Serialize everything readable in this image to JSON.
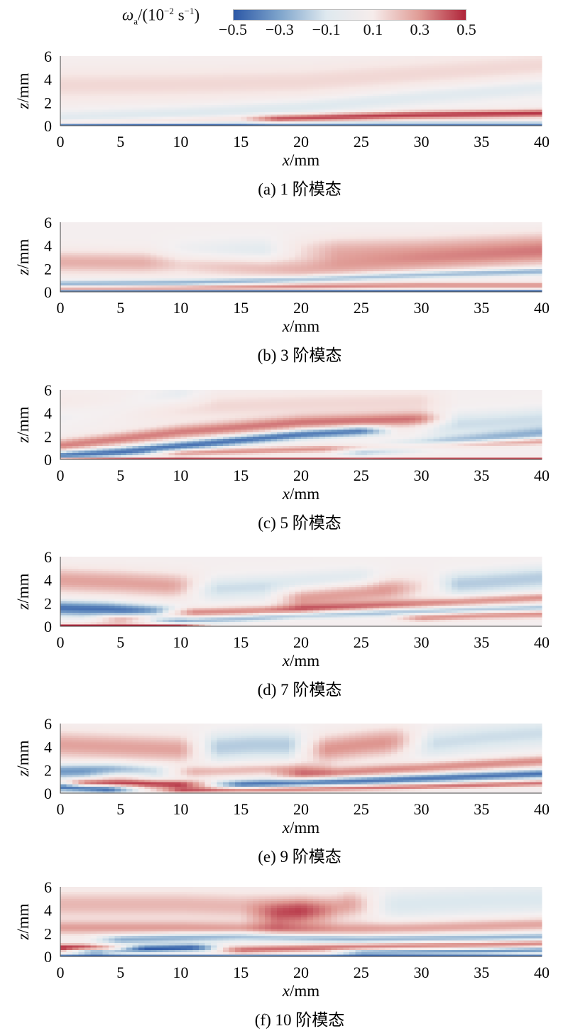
{
  "colorbar": {
    "label_symbol": "ω",
    "label_sub": "a",
    "label_rest_a": "/(10",
    "label_exp1": "−2",
    "label_rest_b": " s",
    "label_exp2": "−1",
    "label_rest_c": ")",
    "ticks": [
      "−0.5",
      "−0.3",
      "−0.1",
      "0.1",
      "0.3",
      "0.5"
    ],
    "tick_values": [
      -0.5,
      -0.3,
      -0.1,
      0.1,
      0.3,
      0.5
    ],
    "colors": [
      "#2c58a6",
      "#7fa5cc",
      "#dfe9ef",
      "#f6eceb",
      "#e09c96",
      "#b0253a"
    ]
  },
  "chart_data": [
    {
      "type": "heatmap",
      "caption": "(a) 1 阶模态",
      "xlabel_italic": "x",
      "xlabel_unit": "/mm",
      "ylabel_italic": "z",
      "ylabel_unit": "/mm",
      "xlim": [
        0,
        40
      ],
      "ylim": [
        0,
        6
      ],
      "xticks": [
        0,
        5,
        10,
        15,
        20,
        25,
        30,
        35,
        40
      ],
      "yticks": [
        0,
        2,
        4,
        6
      ],
      "bands": [
        {
          "x": [
            0,
            10,
            20,
            30,
            40
          ],
          "z": [
            0.05,
            0.1,
            0.15,
            0.15,
            0.15
          ],
          "w": 0.15,
          "v": -0.45
        },
        {
          "x": [
            0,
            10,
            20,
            30,
            40
          ],
          "z": [
            0.25,
            0.5,
            0.8,
            1.0,
            1.1
          ],
          "w": 0.3,
          "v": 0.15
        },
        {
          "x": [
            0,
            10,
            20,
            30,
            40
          ],
          "z": [
            0.5,
            1.0,
            1.6,
            2.6,
            3.4
          ],
          "w": 0.8,
          "v": -0.12
        },
        {
          "x": [
            0,
            10,
            20,
            30,
            40
          ],
          "z": [
            3.5,
            3.6,
            3.8,
            4.5,
            5.2
          ],
          "w": 1.5,
          "v": 0.12
        },
        {
          "x": [
            18,
            28,
            40
          ],
          "z": [
            0.6,
            0.9,
            1.1
          ],
          "w": 0.35,
          "v": 0.3
        }
      ]
    },
    {
      "type": "heatmap",
      "caption": "(b) 3 阶模态",
      "xlabel_italic": "x",
      "xlabel_unit": "/mm",
      "ylabel_italic": "z",
      "ylabel_unit": "/mm",
      "xlim": [
        0,
        40
      ],
      "ylim": [
        0,
        6
      ],
      "xticks": [
        0,
        5,
        10,
        15,
        20,
        25,
        30,
        35,
        40
      ],
      "yticks": [
        0,
        2,
        4,
        6
      ],
      "bands": [
        {
          "x": [
            0,
            10,
            20,
            30,
            40
          ],
          "z": [
            0.1,
            0.1,
            0.1,
            0.1,
            0.1
          ],
          "w": 0.12,
          "v": -0.45
        },
        {
          "x": [
            0,
            10,
            20,
            30,
            40
          ],
          "z": [
            0.7,
            0.8,
            1.1,
            1.5,
            1.8
          ],
          "w": 0.3,
          "v": -0.3
        },
        {
          "x": [
            0,
            10,
            20,
            30,
            40
          ],
          "z": [
            2.6,
            2.5,
            2.0,
            2.6,
            3.2
          ],
          "w": 1.0,
          "v": 0.22
        },
        {
          "x": [
            10,
            15,
            20
          ],
          "z": [
            3.0,
            3.3,
            3.4
          ],
          "w": 1.2,
          "v": -0.12
        },
        {
          "x": [
            20,
            30,
            40
          ],
          "z": [
            3.6,
            3.8,
            4.2
          ],
          "w": 1.1,
          "v": 0.2
        },
        {
          "x": [
            0,
            10,
            20,
            30,
            40
          ],
          "z": [
            0.35,
            0.4,
            0.5,
            0.6,
            0.6
          ],
          "w": 0.25,
          "v": 0.3
        }
      ]
    },
    {
      "type": "heatmap",
      "caption": "(c) 5 阶模态",
      "xlabel_italic": "x",
      "xlabel_unit": "/mm",
      "ylabel_italic": "z",
      "ylabel_unit": "/mm",
      "xlim": [
        0,
        40
      ],
      "ylim": [
        0,
        6
      ],
      "xticks": [
        0,
        5,
        10,
        15,
        20,
        25,
        30,
        35,
        40
      ],
      "yticks": [
        0,
        2,
        4,
        6
      ],
      "bands": [
        {
          "x": [
            0,
            10,
            20,
            30,
            40
          ],
          "z": [
            0.1,
            0.1,
            0.1,
            0.1,
            0.1
          ],
          "w": 0.12,
          "v": 0.4
        },
        {
          "x": [
            0,
            5,
            10,
            20,
            25
          ],
          "z": [
            0.4,
            0.7,
            1.2,
            2.2,
            2.5
          ],
          "w": 0.4,
          "v": -0.45
        },
        {
          "x": [
            0,
            5,
            10,
            20,
            30
          ],
          "z": [
            1.2,
            1.8,
            2.4,
            3.2,
            3.5
          ],
          "w": 0.6,
          "v": 0.32
        },
        {
          "x": [
            10,
            20,
            30,
            40
          ],
          "z": [
            0.6,
            0.9,
            1.2,
            1.6
          ],
          "w": 0.3,
          "v": 0.28
        },
        {
          "x": [
            0,
            10,
            20,
            30
          ],
          "z": [
            4.5,
            4.5,
            4.8,
            5.0
          ],
          "w": 1.2,
          "v": 0.12
        },
        {
          "x": [
            25,
            32,
            40
          ],
          "z": [
            0.8,
            1.5,
            2.3
          ],
          "w": 0.5,
          "v": -0.25
        },
        {
          "x": [
            32,
            36,
            40
          ],
          "z": [
            3.0,
            3.2,
            3.5
          ],
          "w": 1.0,
          "v": -0.15
        },
        {
          "x": [
            0,
            5,
            10
          ],
          "z": [
            4.0,
            4.5,
            5.5
          ],
          "w": 1.0,
          "v": -0.12
        }
      ]
    },
    {
      "type": "heatmap",
      "caption": "(d) 7 阶模态",
      "xlabel_italic": "x",
      "xlabel_unit": "/mm",
      "ylabel_italic": "z",
      "ylabel_unit": "/mm",
      "xlim": [
        0,
        40
      ],
      "ylim": [
        0,
        6
      ],
      "xticks": [
        0,
        5,
        10,
        15,
        20,
        25,
        30,
        35,
        40
      ],
      "yticks": [
        0,
        2,
        4,
        6
      ],
      "bands": [
        {
          "x": [
            0,
            5,
            10
          ],
          "z": [
            0.1,
            0.1,
            0.1
          ],
          "w": 0.15,
          "v": 0.5
        },
        {
          "x": [
            0,
            4,
            8
          ],
          "z": [
            1.6,
            1.5,
            1.2
          ],
          "w": 0.6,
          "v": -0.45
        },
        {
          "x": [
            0,
            5,
            10
          ],
          "z": [
            4.0,
            3.8,
            3.5
          ],
          "w": 1.1,
          "v": 0.25
        },
        {
          "x": [
            5,
            10,
            20,
            30,
            40
          ],
          "z": [
            0.7,
            1.2,
            1.5,
            2.0,
            2.5
          ],
          "w": 0.4,
          "v": 0.3
        },
        {
          "x": [
            10,
            15,
            20,
            30,
            40
          ],
          "z": [
            0.5,
            0.7,
            1.0,
            1.3,
            1.6
          ],
          "w": 0.3,
          "v": -0.25
        },
        {
          "x": [
            12,
            18,
            25
          ],
          "z": [
            3.2,
            3.5,
            4.0
          ],
          "w": 1.0,
          "v": -0.15
        },
        {
          "x": [
            20,
            25,
            30
          ],
          "z": [
            2.5,
            3.0,
            3.5
          ],
          "w": 1.0,
          "v": 0.3
        },
        {
          "x": [
            30,
            35,
            40
          ],
          "z": [
            3.5,
            3.8,
            4.2
          ],
          "w": 1.0,
          "v": -0.2
        },
        {
          "x": [
            30,
            35,
            40
          ],
          "z": [
            0.8,
            1.0,
            1.1
          ],
          "w": 0.35,
          "v": 0.3
        }
      ]
    },
    {
      "type": "heatmap",
      "caption": "(e) 9 阶模态",
      "xlabel_italic": "x",
      "xlabel_unit": "/mm",
      "ylabel_italic": "z",
      "ylabel_unit": "/mm",
      "xlim": [
        0,
        40
      ],
      "ylim": [
        0,
        6
      ],
      "xticks": [
        0,
        5,
        10,
        15,
        20,
        25,
        30,
        35,
        40
      ],
      "yticks": [
        0,
        2,
        4,
        6
      ],
      "bands": [
        {
          "x": [
            0,
            2,
            4
          ],
          "z": [
            0.6,
            0.5,
            0.4
          ],
          "w": 0.35,
          "v": -0.5
        },
        {
          "x": [
            2,
            6,
            10
          ],
          "z": [
            0.9,
            0.9,
            0.8
          ],
          "w": 0.35,
          "v": 0.45
        },
        {
          "x": [
            0,
            4,
            8
          ],
          "z": [
            1.9,
            2.0,
            1.8
          ],
          "w": 0.6,
          "v": -0.35
        },
        {
          "x": [
            0,
            5,
            10
          ],
          "z": [
            4.2,
            4.0,
            3.8
          ],
          "w": 1.2,
          "v": 0.25
        },
        {
          "x": [
            5,
            12,
            20
          ],
          "z": [
            1.6,
            1.9,
            2.2
          ],
          "w": 0.5,
          "v": 0.2
        },
        {
          "x": [
            10,
            20,
            30,
            40
          ],
          "z": [
            0.3,
            0.4,
            0.6,
            0.9
          ],
          "w": 0.25,
          "v": 0.35
        },
        {
          "x": [
            15,
            25,
            35,
            40
          ],
          "z": [
            0.8,
            1.1,
            1.5,
            1.7
          ],
          "w": 0.35,
          "v": -0.45
        },
        {
          "x": [
            20,
            30,
            40
          ],
          "z": [
            1.6,
            2.2,
            2.8
          ],
          "w": 0.5,
          "v": 0.3
        },
        {
          "x": [
            13,
            16,
            19
          ],
          "z": [
            4.0,
            4.2,
            4.2
          ],
          "w": 1.2,
          "v": -0.2
        },
        {
          "x": [
            22,
            25,
            28
          ],
          "z": [
            3.8,
            4.2,
            4.5
          ],
          "w": 1.2,
          "v": 0.28
        },
        {
          "x": [
            30,
            35,
            40
          ],
          "z": [
            4.2,
            4.8,
            5.2
          ],
          "w": 1.2,
          "v": -0.15
        }
      ]
    },
    {
      "type": "heatmap",
      "caption": "(f) 10 阶模态",
      "xlabel_italic": "x",
      "xlabel_unit": "/mm",
      "ylabel_italic": "z",
      "ylabel_unit": "/mm",
      "xlim": [
        0,
        40
      ],
      "ylim": [
        0,
        6
      ],
      "xticks": [
        0,
        5,
        10,
        15,
        20,
        25,
        30,
        35,
        40
      ],
      "yticks": [
        0,
        2,
        4,
        6
      ],
      "bands": [
        {
          "x": [
            0,
            2,
            4
          ],
          "z": [
            0.8,
            0.8,
            0.7
          ],
          "w": 0.3,
          "v": 0.5
        },
        {
          "x": [
            3,
            7,
            11
          ],
          "z": [
            0.5,
            0.7,
            0.8
          ],
          "w": 0.3,
          "v": -0.5
        },
        {
          "x": [
            0,
            10,
            20,
            30,
            40
          ],
          "z": [
            0.1,
            0.1,
            0.1,
            0.1,
            0.1
          ],
          "w": 0.1,
          "v": -0.4
        },
        {
          "x": [
            0,
            10,
            20,
            30,
            40
          ],
          "z": [
            2.5,
            2.5,
            2.3,
            2.5,
            2.8
          ],
          "w": 0.6,
          "v": 0.25
        },
        {
          "x": [
            5,
            15,
            25,
            35,
            40
          ],
          "z": [
            1.5,
            1.8,
            1.5,
            1.6,
            1.7
          ],
          "w": 0.4,
          "v": -0.3
        },
        {
          "x": [
            15,
            25,
            35,
            40
          ],
          "z": [
            0.6,
            0.9,
            1.1,
            1.2
          ],
          "w": 0.35,
          "v": 0.35
        },
        {
          "x": [
            25,
            35,
            40
          ],
          "z": [
            0.4,
            0.5,
            0.6
          ],
          "w": 0.25,
          "v": -0.35
        },
        {
          "x": [
            0,
            10,
            20
          ],
          "z": [
            4.5,
            4.5,
            4.2
          ],
          "w": 1.2,
          "v": 0.2
        },
        {
          "x": [
            18,
            22,
            24
          ],
          "z": [
            3.5,
            4.0,
            4.5
          ],
          "w": 1.2,
          "v": 0.25
        },
        {
          "x": [
            28,
            34,
            40
          ],
          "z": [
            4.5,
            4.8,
            5.0
          ],
          "w": 1.3,
          "v": -0.12
        }
      ]
    }
  ]
}
